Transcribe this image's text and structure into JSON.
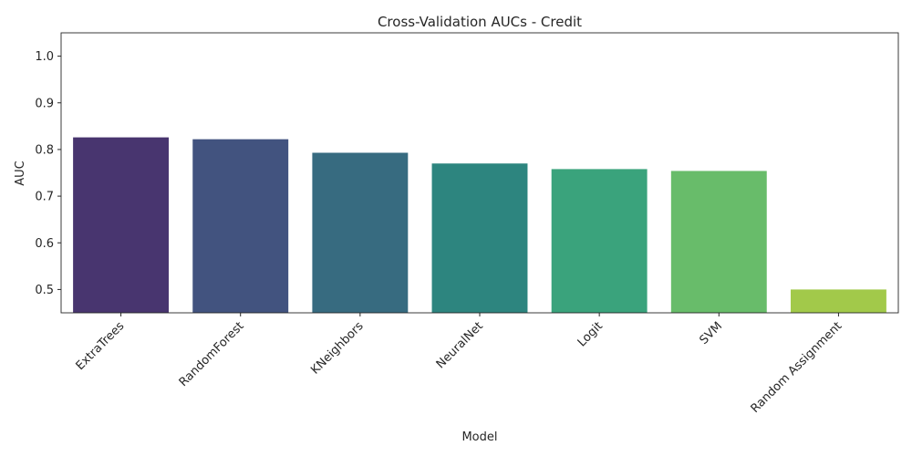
{
  "chart_data": {
    "type": "bar",
    "title": "Cross-Validation AUCs - Credit",
    "xlabel": "Model",
    "ylabel": "AUC",
    "categories": [
      "ExtraTrees",
      "RandomForest",
      "KNeighbors",
      "NeuralNet",
      "Logit",
      "SVM",
      "Random Assignment"
    ],
    "values": [
      0.826,
      0.822,
      0.793,
      0.77,
      0.758,
      0.754,
      0.5
    ],
    "colors": [
      "#48356f",
      "#42537f",
      "#376b80",
      "#2d857f",
      "#3aa37c",
      "#68bc6a",
      "#a2c94a"
    ],
    "ylim": [
      0.45,
      1.05
    ],
    "yticks": [
      "0.5",
      "0.6",
      "0.7",
      "0.8",
      "0.9",
      "1.0"
    ],
    "grid": false,
    "legend": "none"
  }
}
